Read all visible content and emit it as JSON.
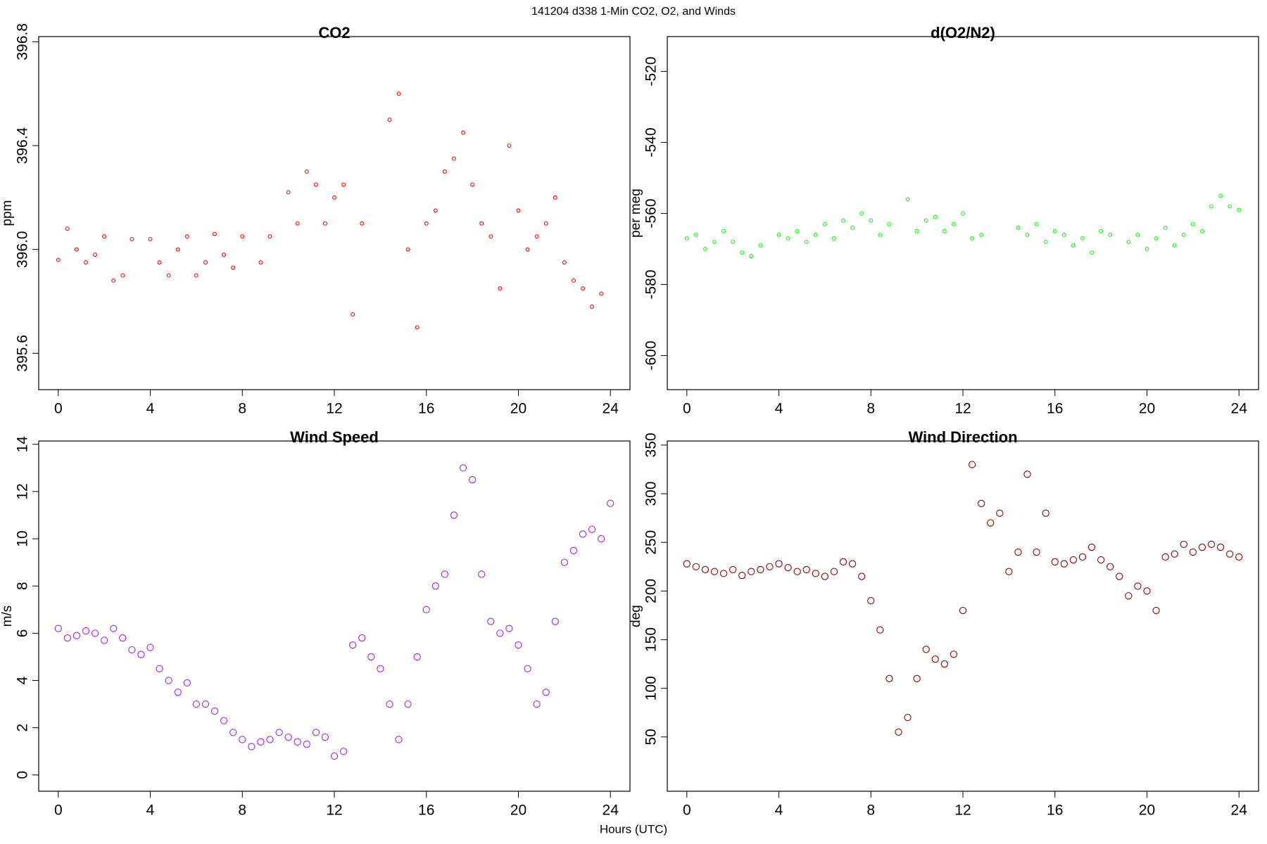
{
  "title": "141204   d338   1-Min CO2, O2, and Winds",
  "xlabel": "Hours (UTC)",
  "chart_data": [
    {
      "type": "scatter",
      "title": "CO2",
      "ylabel": "ppm",
      "color": "#ff0000",
      "x": [
        0,
        0.4,
        0.8,
        1.2,
        1.6,
        2,
        2.4,
        2.8,
        3.2,
        3.6,
        4,
        4.4,
        4.8,
        5.2,
        5.6,
        6,
        6.4,
        6.8,
        7.2,
        7.6,
        8,
        8.4,
        8.8,
        9.2,
        9.6,
        10,
        10.4,
        10.8,
        11.2,
        11.6,
        12,
        12.4,
        12.8,
        13.2,
        13.6,
        14,
        14.4,
        14.8,
        15.2,
        15.6,
        16,
        16.4,
        16.8,
        17.2,
        17.6,
        18,
        18.4,
        18.8,
        19.2,
        19.6,
        20,
        20.4,
        20.8,
        21.2,
        21.6,
        22,
        22.4,
        22.8,
        23.2,
        23.6,
        24
      ],
      "values": [
        395.96,
        396.08,
        396.0,
        395.95,
        395.98,
        396.05,
        395.88,
        395.9,
        396.04,
        null,
        396.04,
        395.95,
        395.9,
        396.0,
        396.05,
        395.9,
        395.95,
        396.06,
        395.98,
        395.93,
        396.05,
        null,
        395.95,
        396.05,
        null,
        396.22,
        396.1,
        396.3,
        396.25,
        396.1,
        396.2,
        396.25,
        395.75,
        396.1,
        null,
        null,
        396.5,
        396.6,
        396.0,
        395.7,
        396.1,
        396.15,
        396.3,
        396.35,
        396.45,
        396.25,
        396.1,
        396.05,
        395.85,
        396.4,
        396.15,
        396.0,
        396.05,
        396.1,
        396.2,
        395.95,
        395.88,
        395.85,
        395.78,
        395.83,
        null
      ],
      "xlim": [
        -0.85,
        24.85
      ],
      "xticks": [
        0,
        4,
        8,
        12,
        16,
        20,
        24
      ],
      "ylim": [
        395.46,
        396.82
      ],
      "yticks": [
        395.6,
        {
          "value": 396,
          "label": "396.0"
        },
        396.4,
        396.8
      ]
    },
    {
      "type": "scatter",
      "title": "d(O2/N2)",
      "ylabel": "per meg",
      "color": "#00ff00",
      "x": [
        0,
        0.4,
        0.8,
        1.2,
        1.6,
        2,
        2.4,
        2.8,
        3.2,
        3.6,
        4,
        4.4,
        4.8,
        5.2,
        5.6,
        6,
        6.4,
        6.8,
        7.2,
        7.6,
        8,
        8.4,
        8.8,
        9.2,
        9.6,
        10,
        10.4,
        10.8,
        11.2,
        11.6,
        12,
        12.4,
        12.8,
        13.2,
        13.6,
        14,
        14.4,
        14.8,
        15.2,
        15.6,
        16,
        16.4,
        16.8,
        17.2,
        17.6,
        18,
        18.4,
        18.8,
        19.2,
        19.6,
        20,
        20.4,
        20.8,
        21.2,
        21.6,
        22,
        22.4,
        22.8,
        23.2,
        23.6,
        24
      ],
      "values": [
        -567,
        -566,
        -570,
        -568,
        -565,
        -568,
        -571,
        -572,
        -569,
        null,
        -566,
        -567,
        -565,
        -568,
        -566,
        -563,
        -567,
        -562,
        -564,
        -560,
        -562,
        -566,
        -563,
        null,
        -556,
        -565,
        -562,
        -561,
        -565,
        -563,
        -560,
        -567,
        -566,
        null,
        null,
        null,
        -564,
        -566,
        -563,
        -568,
        -565,
        -566,
        -569,
        -567,
        -571,
        -565,
        -566,
        null,
        -568,
        -566,
        -570,
        -567,
        -564,
        -569,
        -566,
        -563,
        -565,
        -558,
        -555,
        -558,
        -559
      ],
      "xlim": [
        -0.85,
        24.85
      ],
      "xticks": [
        0,
        4,
        8,
        12,
        16,
        20,
        24
      ],
      "ylim": [
        -609.6,
        -510.2
      ],
      "yticks": [
        -600,
        -580,
        -560,
        -540,
        -520
      ]
    },
    {
      "type": "scatter",
      "title": "Wind Speed",
      "ylabel": "m/s",
      "color": "#a020f0",
      "x": [
        0,
        0.4,
        0.8,
        1.2,
        1.6,
        2,
        2.4,
        2.8,
        3.2,
        3.6,
        4,
        4.4,
        4.8,
        5.2,
        5.6,
        6,
        6.4,
        6.8,
        7.2,
        7.6,
        8,
        8.4,
        8.8,
        9.2,
        9.6,
        10,
        10.4,
        10.8,
        11.2,
        11.6,
        12,
        12.4,
        12.8,
        13.2,
        13.6,
        14,
        14.4,
        14.8,
        15.2,
        15.6,
        16,
        16.4,
        16.8,
        17.2,
        17.6,
        18,
        18.4,
        18.8,
        19.2,
        19.6,
        20,
        20.4,
        20.8,
        21.2,
        21.6,
        22,
        22.4,
        22.8,
        23.2,
        23.6,
        24
      ],
      "values": [
        6.2,
        5.8,
        5.9,
        6.1,
        6.0,
        5.7,
        6.2,
        5.8,
        5.3,
        5.1,
        5.4,
        4.5,
        4.0,
        3.5,
        3.9,
        3.0,
        3.0,
        2.7,
        2.3,
        1.8,
        1.5,
        1.2,
        1.4,
        1.5,
        1.8,
        1.6,
        1.4,
        1.3,
        1.8,
        1.6,
        0.8,
        1.0,
        5.5,
        5.8,
        5.0,
        4.5,
        3.0,
        1.5,
        3.0,
        5.0,
        7.0,
        8.0,
        8.5,
        11.0,
        13.0,
        12.5,
        8.5,
        6.5,
        6.0,
        6.2,
        5.5,
        4.5,
        3.0,
        3.5,
        6.5,
        9.0,
        9.5,
        10.2,
        10.4,
        10.0,
        11.5
      ],
      "xlim": [
        -0.85,
        24.85
      ],
      "xticks": [
        0,
        4,
        8,
        12,
        16,
        20,
        24
      ],
      "ylim": [
        -0.69,
        14.14
      ],
      "yticks": [
        0,
        2,
        4,
        6,
        8,
        10,
        12,
        14
      ]
    },
    {
      "type": "scatter",
      "title": "Wind Direction",
      "ylabel": "deg",
      "color": "#8b0000",
      "x": [
        0,
        0.4,
        0.8,
        1.2,
        1.6,
        2,
        2.4,
        2.8,
        3.2,
        3.6,
        4,
        4.4,
        4.8,
        5.2,
        5.6,
        6,
        6.4,
        6.8,
        7.2,
        7.6,
        8,
        8.4,
        8.8,
        9.2,
        9.6,
        10,
        10.4,
        10.8,
        11.2,
        11.6,
        12,
        12.4,
        12.8,
        13.2,
        13.6,
        14,
        14.4,
        14.8,
        15.2,
        15.6,
        16,
        16.4,
        16.8,
        17.2,
        17.6,
        18,
        18.4,
        18.8,
        19.2,
        19.6,
        20,
        20.4,
        20.8,
        21.2,
        21.6,
        22,
        22.4,
        22.8,
        23.2,
        23.6,
        24
      ],
      "values": [
        228,
        225,
        222,
        220,
        218,
        222,
        216,
        220,
        222,
        225,
        228,
        224,
        220,
        222,
        218,
        215,
        220,
        230,
        228,
        215,
        190,
        160,
        110,
        55,
        70,
        110,
        140,
        130,
        125,
        135,
        180,
        330,
        290,
        270,
        280,
        220,
        240,
        320,
        240,
        280,
        230,
        228,
        232,
        235,
        245,
        232,
        225,
        215,
        195,
        205,
        200,
        180,
        235,
        238,
        248,
        240,
        245,
        248,
        245,
        238,
        235
      ],
      "xlim": [
        -0.85,
        24.85
      ],
      "xticks": [
        0,
        4,
        8,
        12,
        16,
        20,
        24
      ],
      "ylim": [
        -5.8,
        354.2
      ],
      "yticks": [
        50,
        100,
        150,
        200,
        250,
        300,
        350
      ]
    }
  ]
}
